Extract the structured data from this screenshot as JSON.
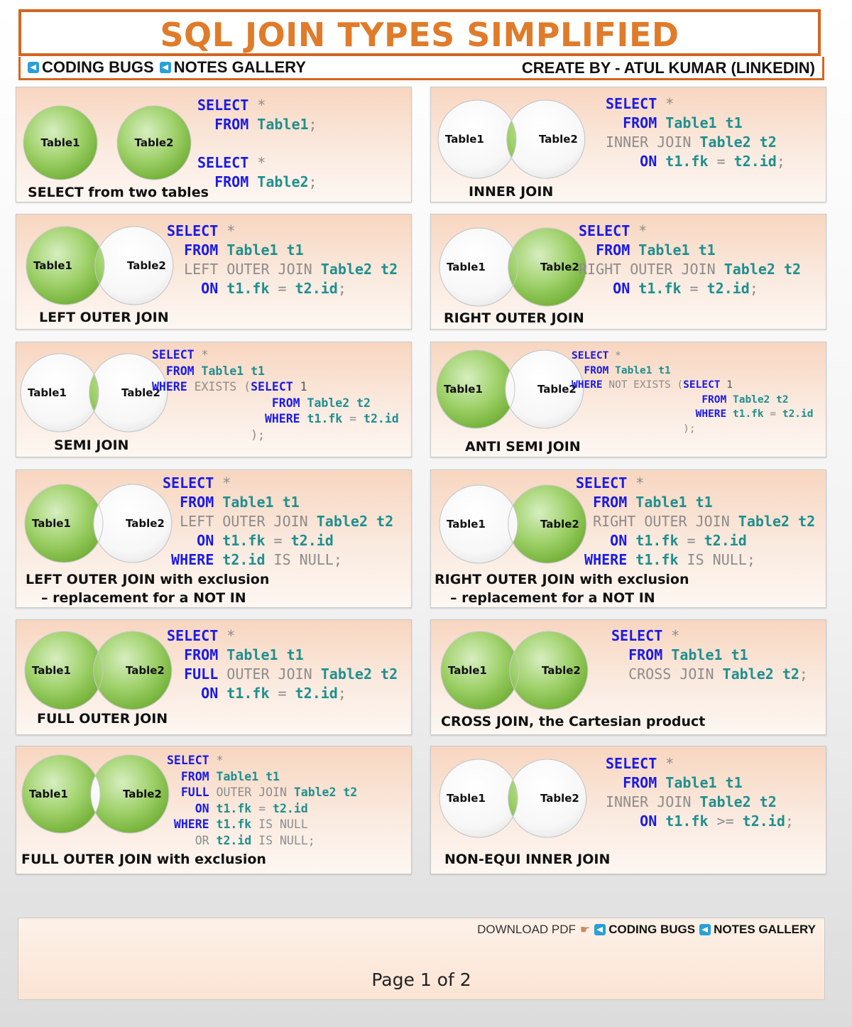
{
  "header": {
    "title": "SQL JOIN TYPES SIMPLIFIED",
    "brand1": "CODING BUGS",
    "brand2": "NOTES GALLERY",
    "author": "CREATE BY - ATUL KUMAR (LINKEDIN)"
  },
  "colors": {
    "accent": "#d5651f",
    "venn_fill": "#8dc63f",
    "keyword": "#1a1ae6",
    "identifier": "#1f8f8f"
  },
  "cards": [
    {
      "caption": [
        "SELECT from two tables"
      ],
      "venn": {
        "mode": "separate",
        "left_label": "Table1",
        "right_label": "Table2",
        "left": true,
        "overlap": false,
        "right": true
      },
      "code": [
        [
          [
            "kw",
            "SELECT"
          ],
          [
            "gr",
            " *"
          ]
        ],
        [
          [
            "kw",
            "  FROM"
          ],
          [
            "id",
            " Table1"
          ],
          [
            "gr",
            ";"
          ]
        ],
        [
          [
            "pl",
            ""
          ]
        ],
        [
          [
            "kw",
            "SELECT"
          ],
          [
            "gr",
            " *"
          ]
        ],
        [
          [
            "kw",
            "  FROM"
          ],
          [
            "id",
            " Table2"
          ],
          [
            "gr",
            ";"
          ]
        ]
      ]
    },
    {
      "caption": [
        "INNER JOIN"
      ],
      "venn": {
        "mode": "overlap",
        "left_label": "Table1",
        "right_label": "Table2",
        "left": false,
        "overlap": true,
        "right": false
      },
      "code": [
        [
          [
            "kw",
            "SELECT"
          ],
          [
            "gr",
            " *"
          ]
        ],
        [
          [
            "kw",
            "  FROM"
          ],
          [
            "id",
            " Table1 t1"
          ]
        ],
        [
          [
            "gr",
            "INNER JOIN"
          ],
          [
            "id",
            " Table2 t2"
          ]
        ],
        [
          [
            "kw",
            "    ON"
          ],
          [
            "id",
            " t1.fk"
          ],
          [
            "gr",
            " ="
          ],
          [
            "id",
            " t2.id"
          ],
          [
            "gr",
            ";"
          ]
        ]
      ]
    },
    {
      "caption": [
        "LEFT OUTER JOIN"
      ],
      "venn": {
        "mode": "overlap",
        "left_label": "Table1",
        "right_label": "Table2",
        "left": true,
        "overlap": true,
        "right": false
      },
      "code": [
        [
          [
            "kw",
            "SELECT"
          ],
          [
            "gr",
            " *"
          ]
        ],
        [
          [
            "kw",
            "  FROM"
          ],
          [
            "id",
            " Table1 t1"
          ]
        ],
        [
          [
            "gr",
            "  LEFT OUTER JOIN"
          ],
          [
            "id",
            " Table2 t2"
          ]
        ],
        [
          [
            "kw",
            "    ON"
          ],
          [
            "id",
            " t1.fk"
          ],
          [
            "gr",
            " ="
          ],
          [
            "id",
            " t2.id"
          ],
          [
            "gr",
            ";"
          ]
        ]
      ]
    },
    {
      "caption": [
        "RIGHT OUTER JOIN"
      ],
      "venn": {
        "mode": "overlap",
        "left_label": "Table1",
        "right_label": "Table2",
        "left": false,
        "overlap": true,
        "right": true
      },
      "code": [
        [
          [
            "kw",
            "SELECT"
          ],
          [
            "gr",
            " *"
          ]
        ],
        [
          [
            "kw",
            "  FROM"
          ],
          [
            "id",
            " Table1 t1"
          ]
        ],
        [
          [
            "gr",
            "RIGHT OUTER JOIN"
          ],
          [
            "id",
            " Table2 t2"
          ]
        ],
        [
          [
            "kw",
            "    ON"
          ],
          [
            "id",
            " t1.fk"
          ],
          [
            "gr",
            " ="
          ],
          [
            "id",
            " t2.id"
          ],
          [
            "gr",
            ";"
          ]
        ]
      ]
    },
    {
      "caption": [
        "SEMI JOIN"
      ],
      "venn": {
        "mode": "overlap",
        "left_label": "Table1",
        "right_label": "Table2",
        "left": false,
        "overlap": true,
        "right": false
      },
      "code": [
        [
          [
            "kw",
            "SELECT"
          ],
          [
            "gr",
            " *"
          ]
        ],
        [
          [
            "kw",
            "  FROM"
          ],
          [
            "id",
            " Table1 t1"
          ]
        ],
        [
          [
            "kw",
            "WHERE"
          ],
          [
            "gr",
            " EXISTS ("
          ],
          [
            "kw",
            "SELECT"
          ],
          [
            "pl",
            " 1"
          ]
        ],
        [
          [
            "kw",
            "                 FROM"
          ],
          [
            "id",
            " Table2 t2"
          ]
        ],
        [
          [
            "kw",
            "                WHERE"
          ],
          [
            "id",
            " t1.fk"
          ],
          [
            "gr",
            " ="
          ],
          [
            "id",
            " t2.id"
          ]
        ],
        [
          [
            "gr",
            "              );"
          ]
        ]
      ]
    },
    {
      "caption": [
        "ANTI SEMI JOIN"
      ],
      "venn": {
        "mode": "overlap",
        "left_label": "Table1",
        "right_label": "Table2",
        "left": true,
        "overlap": false,
        "right": false
      },
      "code": [
        [
          [
            "kw",
            "SELECT"
          ],
          [
            "gr",
            " *"
          ]
        ],
        [
          [
            "kw",
            "  FROM"
          ],
          [
            "id",
            " Table1 t1"
          ]
        ],
        [
          [
            "kw",
            "WHERE"
          ],
          [
            "gr",
            " NOT EXISTS ("
          ],
          [
            "kw",
            "SELECT"
          ],
          [
            "pl",
            " 1"
          ]
        ],
        [
          [
            "kw",
            "                     FROM"
          ],
          [
            "id",
            " Table2 t2"
          ]
        ],
        [
          [
            "kw",
            "                    WHERE"
          ],
          [
            "id",
            " t1.fk"
          ],
          [
            "gr",
            " ="
          ],
          [
            "id",
            " t2.id"
          ]
        ],
        [
          [
            "gr",
            "                  );"
          ]
        ]
      ]
    },
    {
      "caption": [
        "LEFT OUTER JOIN with exclusion",
        "– replacement for a NOT IN"
      ],
      "venn": {
        "mode": "overlap",
        "left_label": "Table1",
        "right_label": "Table2",
        "left": true,
        "overlap": false,
        "right": false
      },
      "code": [
        [
          [
            "kw",
            "SELECT"
          ],
          [
            "gr",
            " *"
          ]
        ],
        [
          [
            "kw",
            "  FROM"
          ],
          [
            "id",
            " Table1 t1"
          ]
        ],
        [
          [
            "gr",
            "  LEFT OUTER JOIN"
          ],
          [
            "id",
            " Table2 t2"
          ]
        ],
        [
          [
            "kw",
            "    ON"
          ],
          [
            "id",
            " t1.fk"
          ],
          [
            "gr",
            " ="
          ],
          [
            "id",
            " t2.id"
          ]
        ],
        [
          [
            "kw",
            " WHERE"
          ],
          [
            "id",
            " t2.id"
          ],
          [
            "gr",
            " IS NULL;"
          ]
        ]
      ]
    },
    {
      "caption": [
        "RIGHT OUTER JOIN with exclusion",
        "– replacement for a NOT IN"
      ],
      "venn": {
        "mode": "overlap",
        "left_label": "Table1",
        "right_label": "Table2",
        "left": false,
        "overlap": false,
        "right": true
      },
      "code": [
        [
          [
            "kw",
            "SELECT"
          ],
          [
            "gr",
            " *"
          ]
        ],
        [
          [
            "kw",
            "  FROM"
          ],
          [
            "id",
            " Table1 t1"
          ]
        ],
        [
          [
            "gr",
            "  RIGHT OUTER JOIN"
          ],
          [
            "id",
            " Table2 t2"
          ]
        ],
        [
          [
            "kw",
            "    ON"
          ],
          [
            "id",
            " t1.fk"
          ],
          [
            "gr",
            " ="
          ],
          [
            "id",
            " t2.id"
          ]
        ],
        [
          [
            "kw",
            " WHERE"
          ],
          [
            "id",
            " t1.fk"
          ],
          [
            "gr",
            " IS NULL;"
          ]
        ]
      ]
    },
    {
      "caption": [
        "FULL OUTER JOIN"
      ],
      "venn": {
        "mode": "overlap",
        "left_label": "Table1",
        "right_label": "Table2",
        "left": true,
        "overlap": true,
        "right": true
      },
      "code": [
        [
          [
            "kw",
            "SELECT"
          ],
          [
            "gr",
            " *"
          ]
        ],
        [
          [
            "kw",
            "  FROM"
          ],
          [
            "id",
            " Table1 t1"
          ]
        ],
        [
          [
            "kw",
            "  FULL"
          ],
          [
            "gr",
            " OUTER JOIN"
          ],
          [
            "id",
            " Table2 t2"
          ]
        ],
        [
          [
            "kw",
            "    ON"
          ],
          [
            "id",
            " t1.fk"
          ],
          [
            "gr",
            " ="
          ],
          [
            "id",
            " t2.id"
          ],
          [
            "gr",
            ";"
          ]
        ]
      ]
    },
    {
      "caption": [
        "CROSS JOIN, the Cartesian product"
      ],
      "venn": {
        "mode": "overlap",
        "left_label": "Table1",
        "right_label": "Table2",
        "left": true,
        "overlap": true,
        "right": true
      },
      "code": [
        [
          [
            "kw",
            "SELECT"
          ],
          [
            "gr",
            " *"
          ]
        ],
        [
          [
            "kw",
            "  FROM"
          ],
          [
            "id",
            " Table1 t1"
          ]
        ],
        [
          [
            "gr",
            "  CROSS JOIN"
          ],
          [
            "id",
            " Table2 t2"
          ],
          [
            "gr",
            ";"
          ]
        ]
      ]
    },
    {
      "caption": [
        "FULL OUTER JOIN with exclusion"
      ],
      "venn": {
        "mode": "overlap",
        "left_label": "Table1",
        "right_label": "Table2",
        "left": true,
        "overlap": false,
        "right": true
      },
      "code": [
        [
          [
            "kw",
            "SELECT"
          ],
          [
            "gr",
            " *"
          ]
        ],
        [
          [
            "kw",
            "  FROM"
          ],
          [
            "id",
            " Table1 t1"
          ]
        ],
        [
          [
            "kw",
            "  FULL"
          ],
          [
            "gr",
            " OUTER JOIN"
          ],
          [
            "id",
            " Table2 t2"
          ]
        ],
        [
          [
            "kw",
            "    ON"
          ],
          [
            "id",
            " t1.fk"
          ],
          [
            "gr",
            " ="
          ],
          [
            "id",
            " t2.id"
          ]
        ],
        [
          [
            "kw",
            " WHERE"
          ],
          [
            "id",
            " t1.fk"
          ],
          [
            "gr",
            " IS NULL"
          ]
        ],
        [
          [
            "gr",
            "    OR"
          ],
          [
            "id",
            " t2.id"
          ],
          [
            "gr",
            " IS NULL;"
          ]
        ]
      ]
    },
    {
      "caption": [
        "NON-EQUI INNER JOIN"
      ],
      "venn": {
        "mode": "overlap",
        "left_label": "Table1",
        "right_label": "Table2",
        "left": false,
        "overlap": true,
        "right": false
      },
      "code": [
        [
          [
            "kw",
            "SELECT"
          ],
          [
            "gr",
            " *"
          ]
        ],
        [
          [
            "kw",
            "  FROM"
          ],
          [
            "id",
            " Table1 t1"
          ]
        ],
        [
          [
            "gr",
            "INNER JOIN"
          ],
          [
            "id",
            " Table2 t2"
          ]
        ],
        [
          [
            "kw",
            "    ON"
          ],
          [
            "id",
            " t1.fk"
          ],
          [
            "gr",
            " >="
          ],
          [
            "id",
            " t2.id"
          ],
          [
            "gr",
            ";"
          ]
        ]
      ]
    }
  ],
  "footer": {
    "download": "DOWNLOAD PDF",
    "brand1": "CODING BUGS",
    "brand2": "NOTES GALLERY",
    "page": "Page 1 of 2"
  }
}
